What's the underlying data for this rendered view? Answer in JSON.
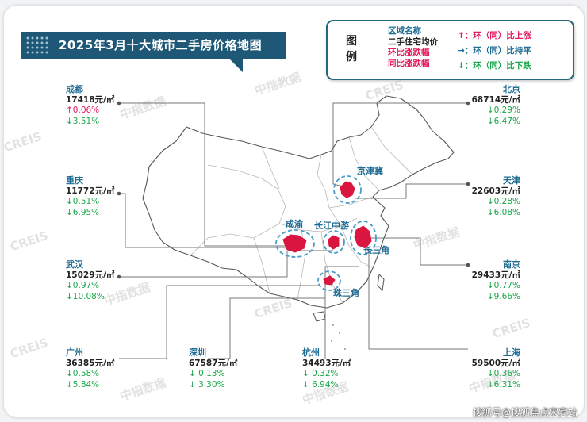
{
  "title": "2025年3月十大城市二手房价格地图",
  "legend": {
    "title": "图例",
    "lines": [
      {
        "text": "区域名称",
        "cls": "c-region"
      },
      {
        "text": "二手住宅均价",
        "cls": "c-price"
      },
      {
        "text": "环比涨跌幅",
        "cls": "c-mom"
      },
      {
        "text": "同比涨跌幅",
        "cls": "c-yoy"
      }
    ],
    "symbols": [
      {
        "text": "↑：环（同）比上涨",
        "cls": "c-up"
      },
      {
        "text": "→：环（同）比持平",
        "cls": "c-flat"
      },
      {
        "text": "↓：环（同）比下跌",
        "cls": "c-down"
      }
    ]
  },
  "cities": [
    {
      "id": "chengdu",
      "name": "成都",
      "price": "17418元/㎡",
      "mom": "↑0.06%",
      "yoy": "↓3.51%",
      "mom_dir": "up",
      "yoy_dir": "down"
    },
    {
      "id": "chongqing",
      "name": "重庆",
      "price": "11772元/㎡",
      "mom": "↓0.51%",
      "yoy": "↓6.95%",
      "mom_dir": "down",
      "yoy_dir": "down"
    },
    {
      "id": "wuhan",
      "name": "武汉",
      "price": "15029元/㎡",
      "mom": "↓0.97%",
      "yoy": "↓10.08%",
      "mom_dir": "down",
      "yoy_dir": "down"
    },
    {
      "id": "guangzhou",
      "name": "广州",
      "price": "36385元/㎡",
      "mom": "↓0.58%",
      "yoy": "↓5.84%",
      "mom_dir": "down",
      "yoy_dir": "down"
    },
    {
      "id": "shenzhen",
      "name": "深圳",
      "price": "67587元/㎡",
      "mom": "↓ 0.13%",
      "yoy": "↓ 3.30%",
      "mom_dir": "down",
      "yoy_dir": "down"
    },
    {
      "id": "hangzhou",
      "name": "杭州",
      "price": "34493元/㎡",
      "mom": "↓ 0.32%",
      "yoy": "↓ 6.94%",
      "mom_dir": "down",
      "yoy_dir": "down"
    },
    {
      "id": "beijing",
      "name": "北京",
      "price": "68714元/㎡",
      "mom": "↓0.29%",
      "yoy": "↓6.47%",
      "mom_dir": "down",
      "yoy_dir": "down"
    },
    {
      "id": "tianjin",
      "name": "天津",
      "price": "22603元/㎡",
      "mom": "↓0.28%",
      "yoy": "↓6.08%",
      "mom_dir": "down",
      "yoy_dir": "down"
    },
    {
      "id": "nanjing",
      "name": "南京",
      "price": "29433元/㎡",
      "mom": "↓0.77%",
      "yoy": "↓9.66%",
      "mom_dir": "down",
      "yoy_dir": "down"
    },
    {
      "id": "shanghai",
      "name": "上海",
      "price": "59500元/㎡",
      "mom": "↓0.36%",
      "yoy": "↓6.31%",
      "mom_dir": "down",
      "yoy_dir": "down"
    }
  ],
  "regions": {
    "jingjinji": "京津冀",
    "chengyu": "成渝",
    "changjiang_zhongyou": "长江中游",
    "changsanjiao": "长三角",
    "zhusanjiao": "珠三角"
  },
  "watermark": {
    "cn": "中指数据",
    "en": "CREIS"
  },
  "footer": "搜狐号@搜狐焦点宋宾站",
  "colors": {
    "title_bg": "#1f5876",
    "region": "#1f6c94",
    "up": "#e5195a",
    "down": "#1aa64a",
    "hotspot": "#d9163f"
  }
}
